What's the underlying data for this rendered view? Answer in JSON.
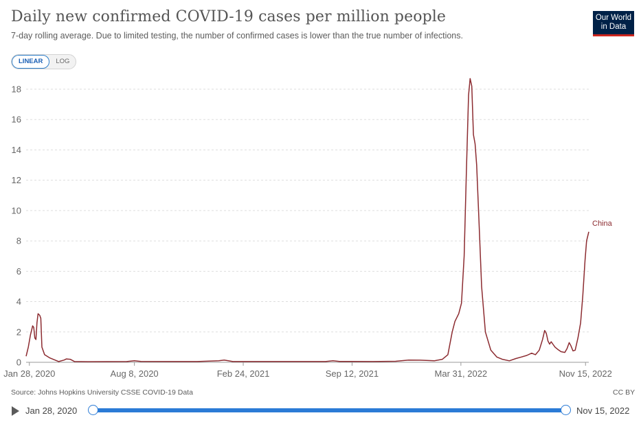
{
  "header": {
    "title": "Daily new confirmed COVID-19 cases per million people",
    "subtitle": "7-day rolling average. Due to limited testing, the number of confirmed cases is lower than the true number of infections.",
    "logo_line1": "Our World",
    "logo_line2": "in Data"
  },
  "scale_toggle": {
    "linear_label": "LINEAR",
    "log_label": "LOG",
    "selected": "LINEAR"
  },
  "footer": {
    "source": "Source: Johns Hopkins University CSSE COVID-19 Data",
    "license": "CC BY"
  },
  "timeline": {
    "start_label": "Jan 28, 2020",
    "end_label": "Nov 15, 2022",
    "start_fraction": 0,
    "end_fraction": 1
  },
  "colors": {
    "line": "#8b2a2f",
    "grid": "#dddddd",
    "slider": "#2b7bd6",
    "logo_bg": "#002147",
    "logo_accent": "#ce261e"
  },
  "chart_data": {
    "type": "line",
    "title": "Daily new confirmed COVID-19 cases per million people",
    "subtitle": "7-day rolling average. Due to limited testing, the number of confirmed cases is lower than the true number of infections.",
    "xlabel": "",
    "ylabel": "",
    "x_range": [
      "2020-01-22",
      "2022-11-21"
    ],
    "ylim": [
      0,
      18
    ],
    "y_ticks": [
      0,
      2,
      4,
      6,
      8,
      10,
      12,
      14,
      16,
      18
    ],
    "x_ticks": [
      {
        "date": "2020-01-28",
        "label": "Jan 28, 2020"
      },
      {
        "date": "2020-08-08",
        "label": "Aug 8, 2020"
      },
      {
        "date": "2021-02-24",
        "label": "Feb 24, 2021"
      },
      {
        "date": "2021-09-12",
        "label": "Sep 12, 2021"
      },
      {
        "date": "2022-03-31",
        "label": "Mar 31, 2022"
      },
      {
        "date": "2022-11-15",
        "label": "Nov 15, 2022"
      }
    ],
    "grid": true,
    "series": [
      {
        "name": "China",
        "color": "#8b2a2f",
        "points": [
          [
            "2020-01-22",
            0.4
          ],
          [
            "2020-01-26",
            1.0
          ],
          [
            "2020-01-30",
            1.8
          ],
          [
            "2020-02-03",
            2.4
          ],
          [
            "2020-02-05",
            2.3
          ],
          [
            "2020-02-07",
            1.6
          ],
          [
            "2020-02-09",
            1.5
          ],
          [
            "2020-02-11",
            2.6
          ],
          [
            "2020-02-13",
            3.2
          ],
          [
            "2020-02-16",
            3.1
          ],
          [
            "2020-02-18",
            2.9
          ],
          [
            "2020-02-20",
            1.0
          ],
          [
            "2020-02-25",
            0.5
          ],
          [
            "2020-03-05",
            0.3
          ],
          [
            "2020-03-15",
            0.15
          ],
          [
            "2020-03-22",
            0.05
          ],
          [
            "2020-04-01",
            0.15
          ],
          [
            "2020-04-05",
            0.22
          ],
          [
            "2020-04-12",
            0.2
          ],
          [
            "2020-04-20",
            0.05
          ],
          [
            "2020-05-15",
            0.04
          ],
          [
            "2020-07-25",
            0.05
          ],
          [
            "2020-08-08",
            0.1
          ],
          [
            "2020-08-20",
            0.06
          ],
          [
            "2020-12-01",
            0.05
          ],
          [
            "2021-01-10",
            0.1
          ],
          [
            "2021-01-20",
            0.15
          ],
          [
            "2021-02-05",
            0.05
          ],
          [
            "2021-07-25",
            0.05
          ],
          [
            "2021-08-08",
            0.1
          ],
          [
            "2021-08-20",
            0.06
          ],
          [
            "2021-10-20",
            0.05
          ],
          [
            "2021-12-01",
            0.07
          ],
          [
            "2021-12-25",
            0.15
          ],
          [
            "2022-01-15",
            0.14
          ],
          [
            "2022-02-10",
            0.1
          ],
          [
            "2022-02-25",
            0.2
          ],
          [
            "2022-03-07",
            0.5
          ],
          [
            "2022-03-15",
            2.0
          ],
          [
            "2022-03-20",
            2.7
          ],
          [
            "2022-03-27",
            3.2
          ],
          [
            "2022-04-01",
            3.9
          ],
          [
            "2022-04-06",
            7.0
          ],
          [
            "2022-04-10",
            12.5
          ],
          [
            "2022-04-14",
            17.6
          ],
          [
            "2022-04-17",
            18.7
          ],
          [
            "2022-04-20",
            18.2
          ],
          [
            "2022-04-23",
            15.0
          ],
          [
            "2022-04-26",
            14.4
          ],
          [
            "2022-04-29",
            13.0
          ],
          [
            "2022-05-03",
            9.5
          ],
          [
            "2022-05-08",
            5.0
          ],
          [
            "2022-05-15",
            2.0
          ],
          [
            "2022-05-25",
            0.8
          ],
          [
            "2022-06-05",
            0.35
          ],
          [
            "2022-06-15",
            0.2
          ],
          [
            "2022-06-28",
            0.1
          ],
          [
            "2022-07-10",
            0.25
          ],
          [
            "2022-07-20",
            0.35
          ],
          [
            "2022-07-30",
            0.45
          ],
          [
            "2022-08-08",
            0.6
          ],
          [
            "2022-08-15",
            0.5
          ],
          [
            "2022-08-22",
            0.8
          ],
          [
            "2022-08-28",
            1.5
          ],
          [
            "2022-09-01",
            2.1
          ],
          [
            "2022-09-04",
            1.9
          ],
          [
            "2022-09-07",
            1.4
          ],
          [
            "2022-09-10",
            1.2
          ],
          [
            "2022-09-13",
            1.35
          ],
          [
            "2022-09-16",
            1.2
          ],
          [
            "2022-09-20",
            1.0
          ],
          [
            "2022-09-25",
            0.85
          ],
          [
            "2022-10-01",
            0.7
          ],
          [
            "2022-10-08",
            0.65
          ],
          [
            "2022-10-12",
            0.9
          ],
          [
            "2022-10-16",
            1.3
          ],
          [
            "2022-10-19",
            1.1
          ],
          [
            "2022-10-23",
            0.75
          ],
          [
            "2022-10-27",
            0.8
          ],
          [
            "2022-11-01",
            1.6
          ],
          [
            "2022-11-06",
            2.6
          ],
          [
            "2022-11-10",
            4.4
          ],
          [
            "2022-11-14",
            6.7
          ],
          [
            "2022-11-17",
            8.0
          ],
          [
            "2022-11-21",
            8.6
          ]
        ]
      }
    ]
  }
}
